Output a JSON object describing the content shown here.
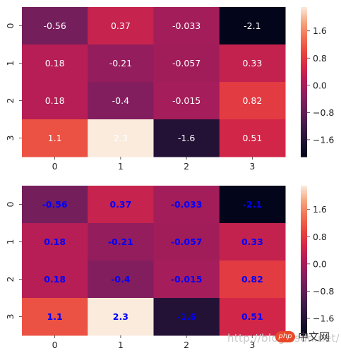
{
  "chart_data": [
    {
      "type": "heatmap",
      "x_categories": [
        "0",
        "1",
        "2",
        "3"
      ],
      "y_categories": [
        "0",
        "1",
        "2",
        "3"
      ],
      "values": [
        [
          -0.56,
          0.37,
          -0.033,
          -2.1
        ],
        [
          0.18,
          -0.21,
          -0.057,
          0.33
        ],
        [
          0.18,
          -0.4,
          -0.015,
          0.82
        ],
        [
          1.1,
          2.3,
          -1.6,
          0.51
        ]
      ],
      "annotations": [
        [
          "-0.56",
          "0.37",
          "-0.033",
          "-2.1"
        ],
        [
          "0.18",
          "-0.21",
          "-0.057",
          "0.33"
        ],
        [
          "0.18",
          "-0.4",
          "-0.015",
          "0.82"
        ],
        [
          "1.1",
          "2.3",
          "-1.6",
          "0.51"
        ]
      ],
      "annotation_color": "#ffffff",
      "annotation_weight": "normal",
      "colormap": "rocket",
      "vmin": -2.1,
      "vmax": 2.3,
      "colorbar_ticks": [
        1.6,
        0.8,
        0.0,
        -0.8,
        -1.6
      ],
      "colorbar_tick_labels": [
        "1.6",
        "0.8",
        "0.0",
        "−0.8",
        "−1.6"
      ]
    },
    {
      "type": "heatmap",
      "x_categories": [
        "0",
        "1",
        "2",
        "3"
      ],
      "y_categories": [
        "0",
        "1",
        "2",
        "3"
      ],
      "values": [
        [
          -0.56,
          0.37,
          -0.033,
          -2.1
        ],
        [
          0.18,
          -0.21,
          -0.057,
          0.33
        ],
        [
          0.18,
          -0.4,
          -0.015,
          0.82
        ],
        [
          1.1,
          2.3,
          -1.6,
          0.51
        ]
      ],
      "annotations": [
        [
          "-0.56",
          "0.37",
          "-0.033",
          "-2.1"
        ],
        [
          "0.18",
          "-0.21",
          "-0.057",
          "0.33"
        ],
        [
          "0.18",
          "-0.4",
          "-0.015",
          "0.82"
        ],
        [
          "1.1",
          "2.3",
          "-1.6",
          "0.51"
        ]
      ],
      "annotation_color": "#0000ff",
      "annotation_weight": "bold",
      "colormap": "rocket",
      "vmin": -2.1,
      "vmax": 2.3,
      "colorbar_ticks": [
        1.6,
        0.8,
        0.0,
        -0.8,
        -1.6
      ],
      "colorbar_tick_labels": [
        "1.6",
        "0.8",
        "0.0",
        "−0.8",
        "−1.6"
      ]
    }
  ],
  "watermark": {
    "text": "http://blog.csdn.net/",
    "logo_text": "php",
    "brand_text": "中文网"
  }
}
